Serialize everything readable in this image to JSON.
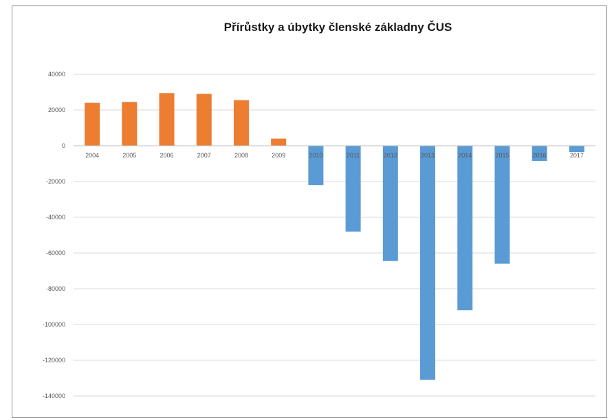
{
  "chart_data": {
    "type": "bar",
    "title": "Přírůstky a úbytky členské základny ČUS",
    "xlabel": "",
    "ylabel": "",
    "categories": [
      "2004",
      "2005",
      "2006",
      "2007",
      "2008",
      "2009",
      "2010",
      "2011",
      "2012",
      "2013",
      "2014",
      "2015",
      "2016",
      "2017"
    ],
    "values": [
      24000,
      24500,
      29500,
      29000,
      25500,
      4000,
      -22000,
      -48000,
      -64500,
      -131000,
      -92000,
      -66000,
      -8500,
      -3500
    ],
    "ylim": [
      -140000,
      40000
    ],
    "yticks": [
      40000,
      20000,
      0,
      -20000,
      -40000,
      -60000,
      -80000,
      -100000,
      -120000,
      -140000
    ],
    "ytick_labels": [
      "40000",
      "20000",
      "0",
      "-20000",
      "-40000",
      "-60000",
      "-80000",
      "-100000",
      "-120000",
      "-140000"
    ],
    "colors": {
      "positive": "#ED7D31",
      "negative": "#5B9BD5",
      "grid": "#d9d9d9"
    },
    "grid": true,
    "legend": "none"
  }
}
